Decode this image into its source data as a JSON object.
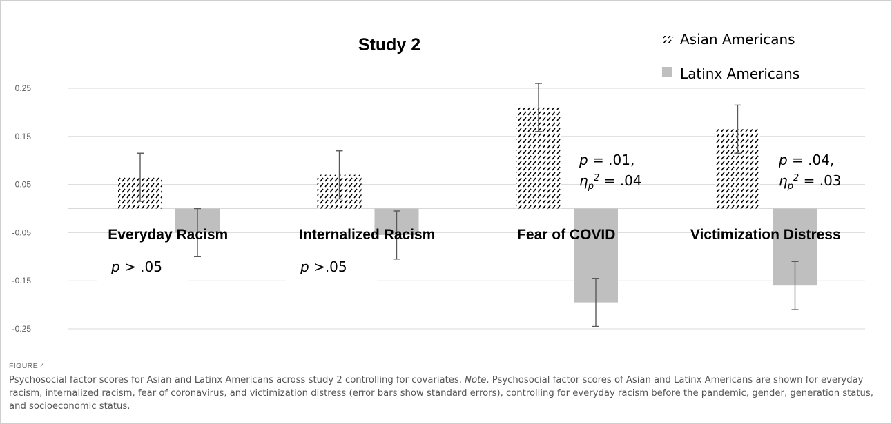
{
  "chart_data": {
    "type": "bar",
    "title": "Study 2",
    "categories": [
      "Everyday Racism",
      "Internalized Racism",
      "Fear of COVID",
      "Victimization Distress"
    ],
    "series": [
      {
        "name": "Asian Americans",
        "values": [
          0.065,
          0.07,
          0.21,
          0.165
        ],
        "errors": [
          0.05,
          0.05,
          0.05,
          0.05
        ],
        "pattern": "hatched"
      },
      {
        "name": "Latinx Americans",
        "values": [
          -0.05,
          -0.055,
          -0.195,
          -0.16
        ],
        "errors": [
          0.05,
          0.05,
          0.05,
          0.05
        ],
        "color": "#bfbfbf"
      }
    ],
    "ylim": [
      -0.25,
      0.25
    ],
    "yticks": [
      0.25,
      0.15,
      0.05,
      -0.05,
      -0.15,
      -0.25
    ],
    "ytick_labels": [
      "0.25",
      "0.15",
      "0.05",
      "-0.05",
      "-0.15",
      "-0.25"
    ],
    "annotations": [
      {
        "category": "Everyday Racism",
        "p_text": "p > .05"
      },
      {
        "category": "Internalized Racism",
        "p_text": "p >.05"
      },
      {
        "category": "Fear of COVID",
        "p_text": "p = .01,",
        "effect_text": "η p 2 = .04",
        "effect_value": ".04"
      },
      {
        "category": "Victimization Distress",
        "p_text": "p = .04,",
        "effect_text": "η p 2 = .03",
        "effect_value": ".03"
      }
    ],
    "legend_position": "top-right",
    "grid": true
  },
  "caption": {
    "figure_label": "FIGURE 4",
    "text_before_note": "Psychosocial factor scores for Asian and Latinx Americans across study 2 controlling for covariates. ",
    "note_label": "Note",
    "text_after_note": ". Psychosocial factor scores of Asian and Latinx Americans are shown for everyday racism, internalized racism, fear of coronavirus, and victimization distress (error bars show standard errors), controlling for everyday racism before the pandemic, gender, generation status, and socioeconomic status."
  }
}
